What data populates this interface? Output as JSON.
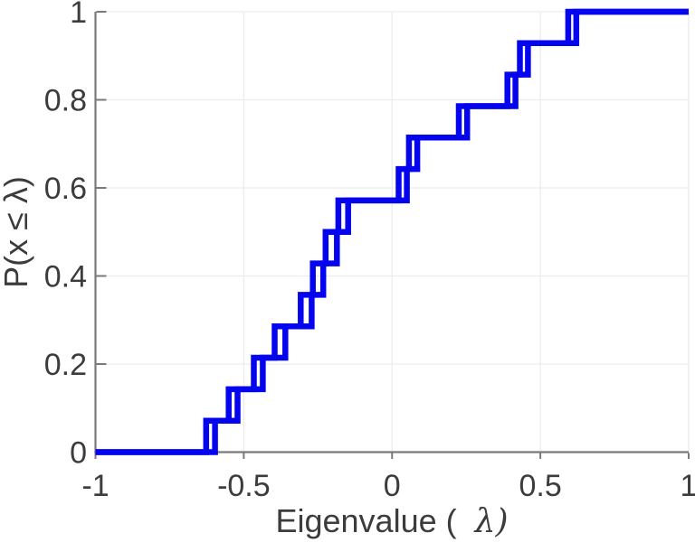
{
  "chart_data": {
    "type": "line",
    "subtype": "ecdf-stairs",
    "title": "",
    "xlabel_prefix": "Eigenvalue (  ",
    "xlabel_lambda": "λ)",
    "ylabel": "P(x ≤ λ)",
    "xlim": [
      -1,
      1
    ],
    "ylim": [
      0,
      1
    ],
    "grid": true,
    "legend": "none",
    "x_ticks": [
      -1,
      -0.5,
      0,
      0.5,
      1
    ],
    "x_tick_labels": [
      "-1",
      "-0.5",
      "0",
      "0.5",
      "1"
    ],
    "y_ticks": [
      0,
      0.2,
      0.4,
      0.6,
      0.8,
      1
    ],
    "y_tick_labels": [
      "0",
      "0.2",
      "0.4",
      "0.6",
      "0.8",
      "1"
    ],
    "n_points": 14,
    "probability_levels": [
      0.071,
      0.143,
      0.214,
      0.286,
      0.357,
      0.429,
      0.5,
      0.571,
      0.643,
      0.714,
      0.786,
      0.857,
      0.929,
      1.0
    ],
    "series": [
      {
        "name": "ecdf-curve-1",
        "values": [
          -0.627,
          -0.551,
          -0.466,
          -0.396,
          -0.308,
          -0.267,
          -0.224,
          -0.181,
          0.022,
          0.057,
          0.225,
          0.389,
          0.431,
          0.594
        ]
      },
      {
        "name": "ecdf-curve-2",
        "values": [
          -0.597,
          -0.521,
          -0.436,
          -0.36,
          -0.271,
          -0.232,
          -0.186,
          -0.148,
          0.05,
          0.085,
          0.253,
          0.416,
          0.458,
          0.621
        ]
      }
    ],
    "colors": {
      "line": "#0404ee",
      "grid": "#ececec",
      "spine": "#7a7a7a",
      "tick": "#7a7a7a",
      "text": "#3c3c3c"
    }
  }
}
